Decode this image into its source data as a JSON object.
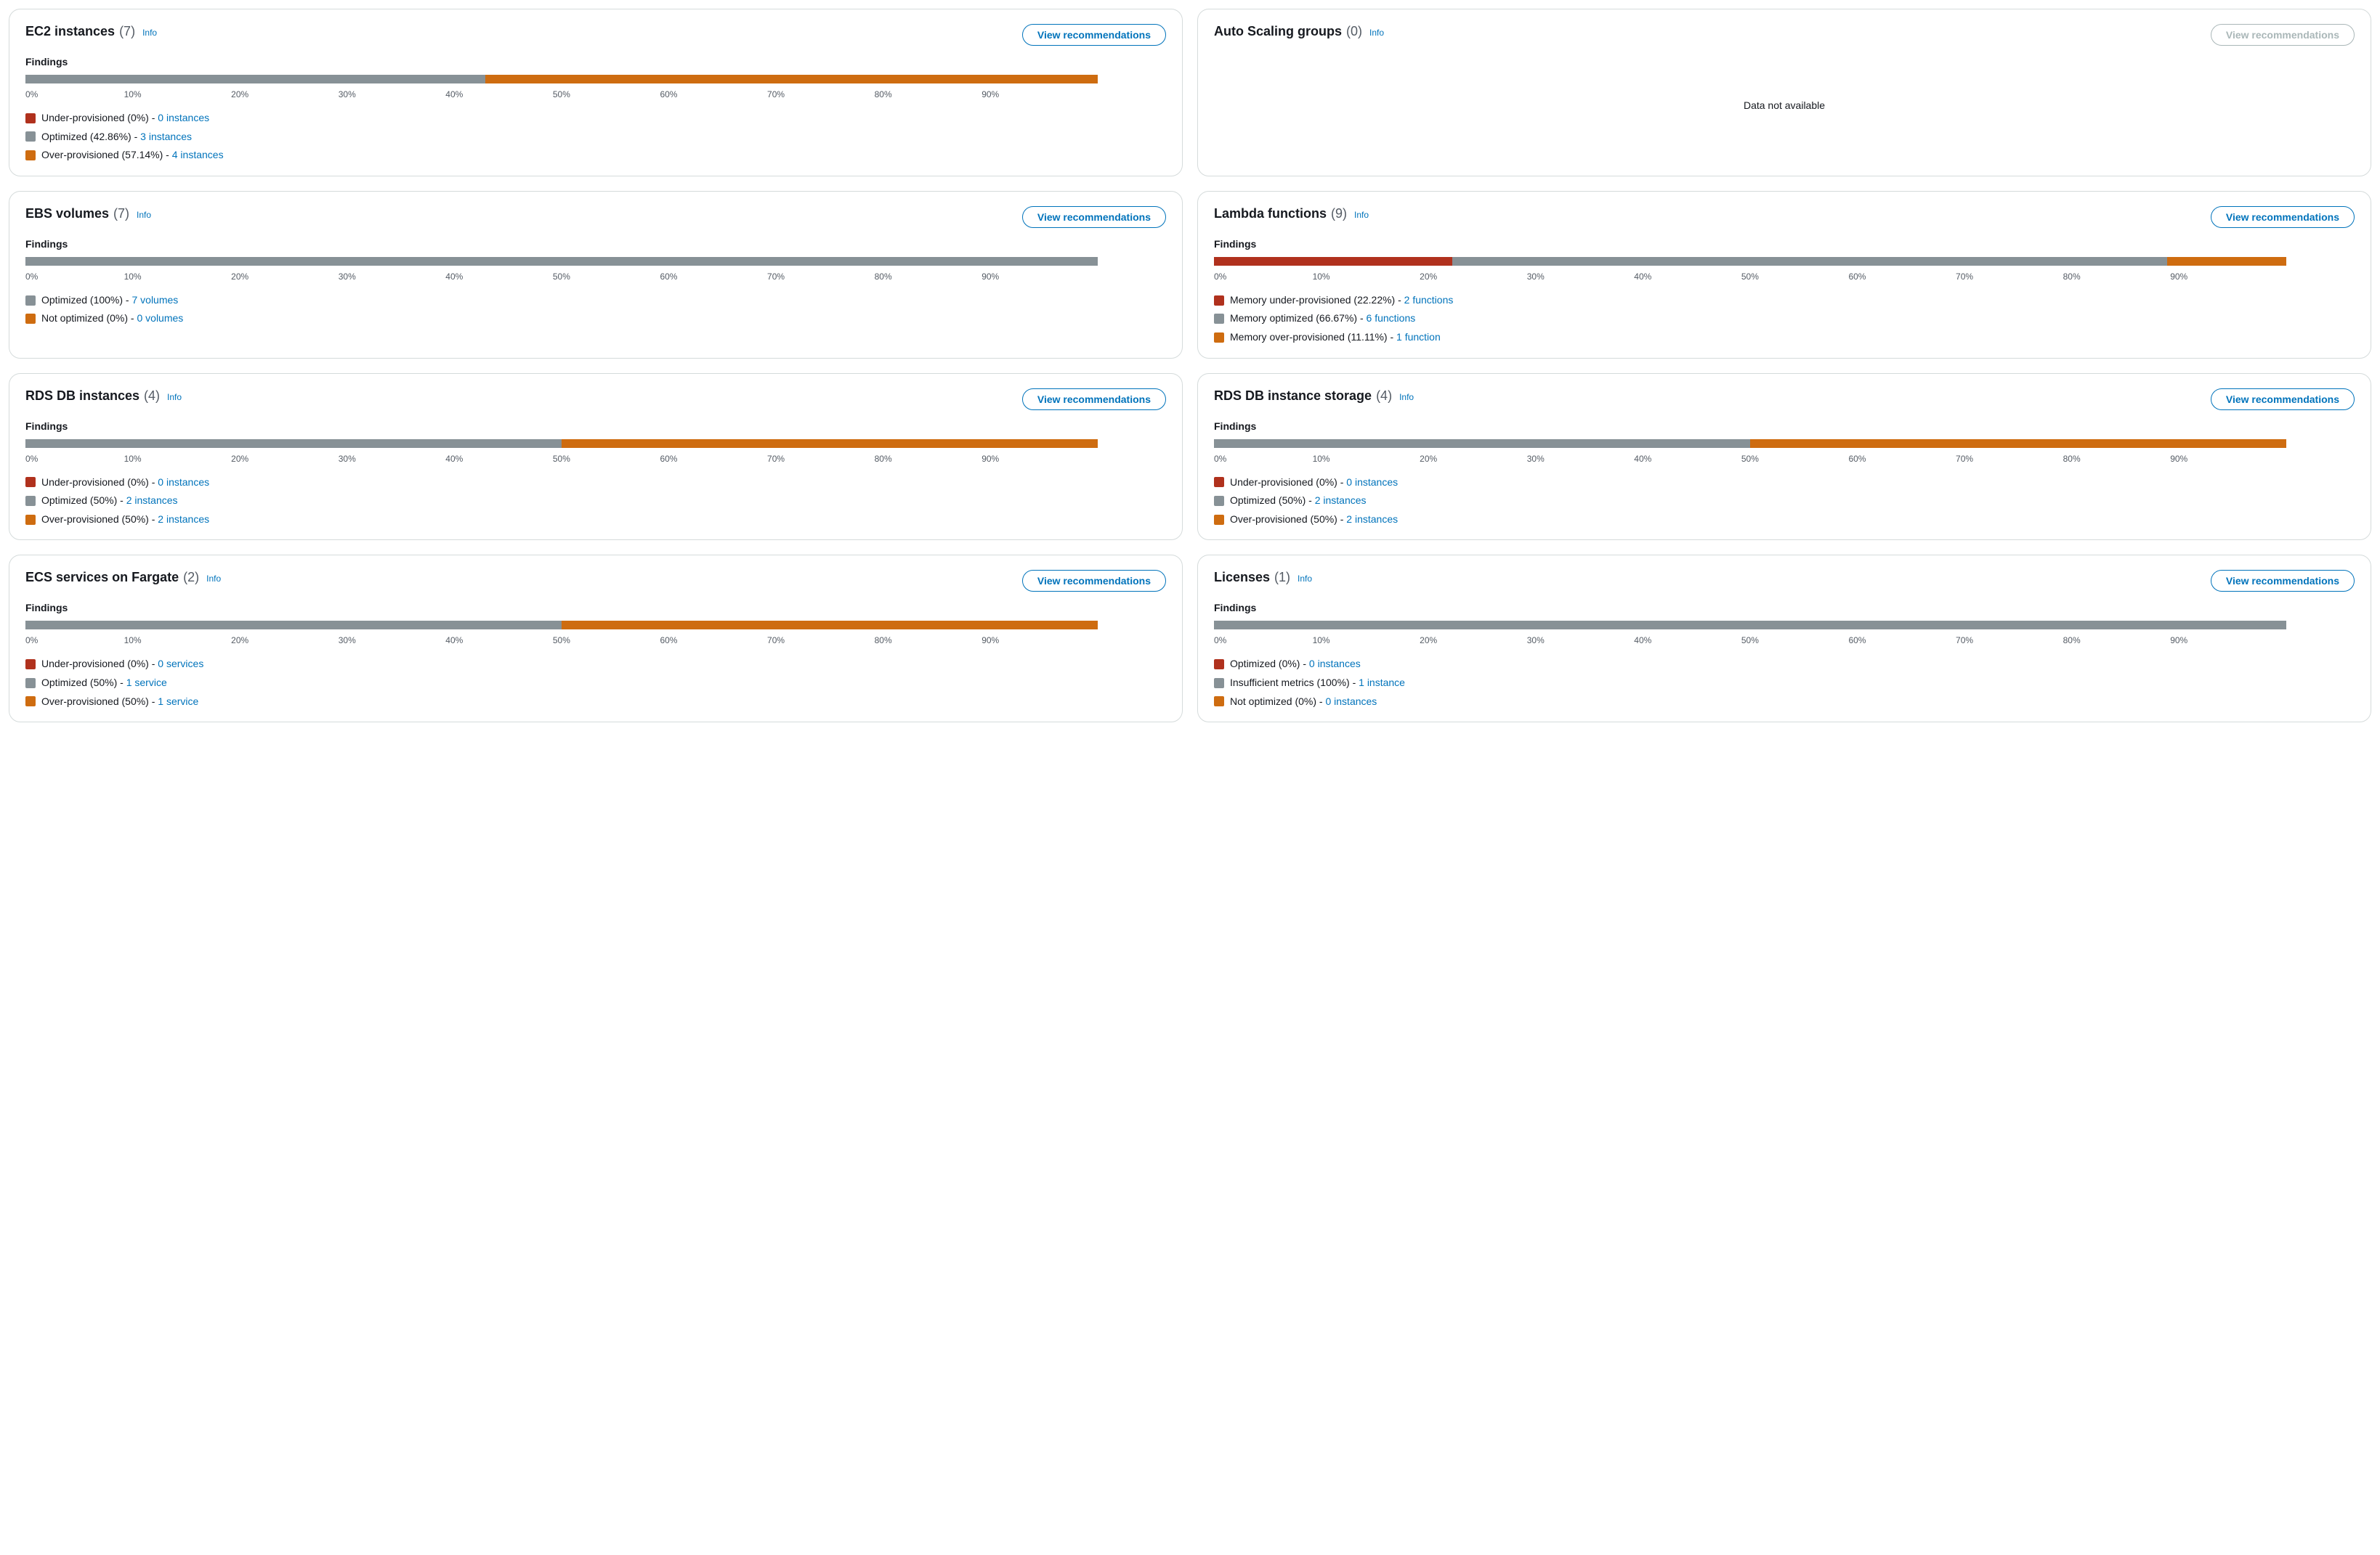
{
  "labels": {
    "info": "Info",
    "view_recommendations": "View recommendations",
    "findings": "Findings",
    "no_data": "Data not available"
  },
  "axis": {
    "ticks": [
      "0%",
      "10%",
      "20%",
      "30%",
      "40%",
      "50%",
      "60%",
      "70%",
      "80%",
      "90%"
    ],
    "tick_positions_pct": [
      0,
      10,
      20,
      30,
      40,
      50,
      60,
      70,
      80,
      90
    ]
  },
  "colors": {
    "under": "#b0311d",
    "optimized": "#879196",
    "over": "#ce6c10",
    "link": "#0073bb",
    "text": "#16191f",
    "muted": "#545b64",
    "border": "#d5dbdb",
    "disabled": "#aab7b8",
    "background": "#ffffff"
  },
  "cards": [
    {
      "id": "ec2-instances",
      "title": "EC2 instances",
      "count": "(7)",
      "has_data": true,
      "button_disabled": false,
      "segments": [
        {
          "color_key": "under",
          "width_pct": 0
        },
        {
          "color_key": "optimized",
          "width_pct": 42.86
        },
        {
          "color_key": "over",
          "width_pct": 57.14
        }
      ],
      "legend": [
        {
          "color_key": "under",
          "text": "Under-provisioned (0%) - ",
          "link": "0 instances"
        },
        {
          "color_key": "optimized",
          "text": "Optimized (42.86%) - ",
          "link": "3 instances"
        },
        {
          "color_key": "over",
          "text": "Over-provisioned (57.14%) - ",
          "link": "4 instances"
        }
      ]
    },
    {
      "id": "auto-scaling-groups",
      "title": "Auto Scaling groups",
      "count": "(0)",
      "has_data": false,
      "button_disabled": true
    },
    {
      "id": "ebs-volumes",
      "title": "EBS volumes",
      "count": "(7)",
      "has_data": true,
      "button_disabled": false,
      "segments": [
        {
          "color_key": "optimized",
          "width_pct": 100
        },
        {
          "color_key": "over",
          "width_pct": 0
        }
      ],
      "legend": [
        {
          "color_key": "optimized",
          "text": "Optimized (100%) - ",
          "link": "7 volumes"
        },
        {
          "color_key": "over",
          "text": "Not optimized (0%) - ",
          "link": "0 volumes"
        }
      ]
    },
    {
      "id": "lambda-functions",
      "title": "Lambda functions",
      "count": "(9)",
      "has_data": true,
      "button_disabled": false,
      "segments": [
        {
          "color_key": "under",
          "width_pct": 22.22
        },
        {
          "color_key": "optimized",
          "width_pct": 66.67
        },
        {
          "color_key": "over",
          "width_pct": 11.11
        }
      ],
      "legend": [
        {
          "color_key": "under",
          "text": "Memory under-provisioned (22.22%) - ",
          "link": "2 functions"
        },
        {
          "color_key": "optimized",
          "text": "Memory optimized (66.67%) - ",
          "link": "6 functions"
        },
        {
          "color_key": "over",
          "text": "Memory over-provisioned (11.11%) - ",
          "link": "1 function"
        }
      ]
    },
    {
      "id": "rds-db-instances",
      "title": "RDS DB instances",
      "count": "(4)",
      "has_data": true,
      "button_disabled": false,
      "segments": [
        {
          "color_key": "under",
          "width_pct": 0
        },
        {
          "color_key": "optimized",
          "width_pct": 50
        },
        {
          "color_key": "over",
          "width_pct": 50
        }
      ],
      "legend": [
        {
          "color_key": "under",
          "text": "Under-provisioned (0%) - ",
          "link": "0 instances"
        },
        {
          "color_key": "optimized",
          "text": "Optimized (50%) - ",
          "link": "2 instances"
        },
        {
          "color_key": "over",
          "text": "Over-provisioned (50%) - ",
          "link": "2 instances"
        }
      ]
    },
    {
      "id": "rds-db-instance-storage",
      "title": "RDS DB instance storage",
      "count": "(4)",
      "has_data": true,
      "button_disabled": false,
      "segments": [
        {
          "color_key": "under",
          "width_pct": 0
        },
        {
          "color_key": "optimized",
          "width_pct": 50
        },
        {
          "color_key": "over",
          "width_pct": 50
        }
      ],
      "legend": [
        {
          "color_key": "under",
          "text": "Under-provisioned (0%) - ",
          "link": "0 instances"
        },
        {
          "color_key": "optimized",
          "text": "Optimized (50%) - ",
          "link": "2 instances"
        },
        {
          "color_key": "over",
          "text": "Over-provisioned (50%) - ",
          "link": "2 instances"
        }
      ]
    },
    {
      "id": "ecs-services-fargate",
      "title": "ECS services on Fargate",
      "count": "(2)",
      "has_data": true,
      "button_disabled": false,
      "segments": [
        {
          "color_key": "under",
          "width_pct": 0
        },
        {
          "color_key": "optimized",
          "width_pct": 50
        },
        {
          "color_key": "over",
          "width_pct": 50
        }
      ],
      "legend": [
        {
          "color_key": "under",
          "text": "Under-provisioned (0%) - ",
          "link": "0 services"
        },
        {
          "color_key": "optimized",
          "text": "Optimized (50%) - ",
          "link": "1 service"
        },
        {
          "color_key": "over",
          "text": "Over-provisioned (50%) - ",
          "link": "1 service"
        }
      ]
    },
    {
      "id": "licenses",
      "title": "Licenses",
      "count": "(1)",
      "has_data": true,
      "button_disabled": false,
      "segments": [
        {
          "color_key": "under",
          "width_pct": 0
        },
        {
          "color_key": "optimized",
          "width_pct": 100
        },
        {
          "color_key": "over",
          "width_pct": 0
        }
      ],
      "legend": [
        {
          "color_key": "under",
          "text": "Optimized (0%) - ",
          "link": "0 instances"
        },
        {
          "color_key": "optimized",
          "text": "Insufficient metrics (100%) - ",
          "link": "1 instance"
        },
        {
          "color_key": "over",
          "text": "Not optimized (0%) - ",
          "link": "0 instances"
        }
      ]
    }
  ]
}
